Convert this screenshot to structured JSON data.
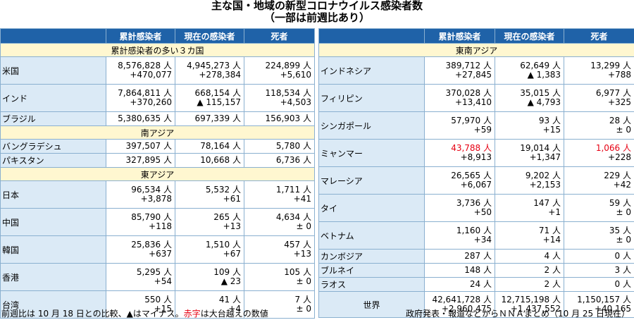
{
  "title": {
    "line1": "主な国・地域の新型コロナウイルス感染者数",
    "line2": "（一部は前週比あり）"
  },
  "headers": [
    "",
    "累計感染者",
    "現在の感染者",
    "死者"
  ],
  "left": [
    {
      "section": "累計感染者の多い３カ国"
    },
    {
      "name": "米国",
      "cum": "8,576,828 人",
      "cum_d": "+470,077",
      "cur": "4,945,273 人",
      "cur_d": "+278,384",
      "dead": "224,899 人",
      "dead_d": "+5,610"
    },
    {
      "name": "インド",
      "cum": "7,864,811 人",
      "cum_d": "+370,260",
      "cur": "668,154 人",
      "cur_d": "▲ 115,157",
      "dead": "118,534 人",
      "dead_d": "+4,503"
    },
    {
      "name": "ブラジル",
      "cum": "5,380,635 人",
      "cum_d": "",
      "cur": "697,339 人",
      "cur_d": "",
      "dead": "156,903 人",
      "dead_d": "",
      "single": true
    },
    {
      "section": "南アジア"
    },
    {
      "name": "バングラデシュ",
      "cum": "397,507 人",
      "cum_d": "",
      "cur": "78,164 人",
      "cur_d": "",
      "dead": "5,780 人",
      "dead_d": "",
      "single": true
    },
    {
      "name": "パキスタン",
      "cum": "327,895 人",
      "cum_d": "",
      "cur": "10,668 人",
      "cur_d": "",
      "dead": "6,736 人",
      "dead_d": "",
      "single": true
    },
    {
      "section": "東アジア"
    },
    {
      "name": "日本",
      "cum": "96,534 人",
      "cum_d": "+3,878",
      "cur": "5,532 人",
      "cur_d": "+61",
      "dead": "1,711 人",
      "dead_d": "+41"
    },
    {
      "name": "中国",
      "cum": "85,790 人",
      "cum_d": "+118",
      "cur": "265 人",
      "cur_d": "+13",
      "dead": "4,634 人",
      "dead_d": "± 0"
    },
    {
      "name": "韓国",
      "cum": "25,836 人",
      "cum_d": "+637",
      "cur": "1,510 人",
      "cur_d": "+67",
      "dead": "457 人",
      "dead_d": "+13"
    },
    {
      "name": "香港",
      "cum": "5,295 人",
      "cum_d": "+54",
      "cur": "109 人",
      "cur_d": "▲ 23",
      "dead": "105 人",
      "dead_d": "± 0"
    },
    {
      "name": "台湾",
      "cum": "550 人",
      "cum_d": "+15",
      "cur": "41 人",
      "cur_d": "+4",
      "dead": "7 人",
      "dead_d": "± 0"
    }
  ],
  "right": [
    {
      "section": "東南アジア"
    },
    {
      "name": "インドネシア",
      "cum": "389,712 人",
      "cum_d": "+27,845",
      "cur": "62,649 人",
      "cur_d": "▲ 1,383",
      "dead": "13,299 人",
      "dead_d": "+788"
    },
    {
      "name": "フィリピン",
      "cum": "370,028 人",
      "cum_d": "+13,410",
      "cur": "35,015 人",
      "cur_d": "▲ 4,793",
      "dead": "6,977 人",
      "dead_d": "+325"
    },
    {
      "name": "シンガポール",
      "cum": "57,970 人",
      "cum_d": "+59",
      "cur": "93 人",
      "cur_d": "+15",
      "dead": "28 人",
      "dead_d": "± 0"
    },
    {
      "name": "ミャンマー",
      "cum": "43,788 人",
      "cum_d": "+8,913",
      "cur": "19,014 人",
      "cur_d": "+1,347",
      "dead": "1,066 人",
      "dead_d": "+228",
      "cum_red": true,
      "dead_red": true
    },
    {
      "name": "マレーシア",
      "cum": "26,565 人",
      "cum_d": "+6,067",
      "cur": "9,202 人",
      "cur_d": "+2,153",
      "dead": "229 人",
      "dead_d": "+42"
    },
    {
      "name": "タイ",
      "cum": "3,736 人",
      "cum_d": "+50",
      "cur": "147 人",
      "cur_d": "+1",
      "dead": "59 人",
      "dead_d": "± 0"
    },
    {
      "name": "ベトナム",
      "cum": "1,160 人",
      "cum_d": "+34",
      "cur": "71 人",
      "cur_d": "+14",
      "dead": "35 人",
      "dead_d": "± 0"
    },
    {
      "name": "カンボジア",
      "cum": "287 人",
      "cum_d": "",
      "cur": "4 人",
      "cur_d": "",
      "dead": "0 人",
      "dead_d": "",
      "single": true
    },
    {
      "name": "ブルネイ",
      "cum": "148 人",
      "cum_d": "",
      "cur": "2 人",
      "cur_d": "",
      "dead": "3 人",
      "dead_d": "",
      "single": true
    },
    {
      "name": "ラオス",
      "cum": "24 人",
      "cum_d": "",
      "cur": "2 人",
      "cur_d": "",
      "dead": "0 人",
      "dead_d": "",
      "single": true
    },
    {
      "name": "世界",
      "cum": "42,641,728 人",
      "cum_d": "+2,960,475",
      "cur": "12,715,198 人",
      "cur_d": "+1,437,552",
      "dead": "1,150,157 人",
      "dead_d": "+40,165",
      "world": true
    }
  ],
  "footer": {
    "left_pre": "前週比は 10 月 18 日との比較、▲はマイナス。",
    "left_red": "赤字",
    "left_post": "は大台越えの数値",
    "right": "政府発表・報道などからＮＮＡまとめ（10 月 25 日現在）"
  },
  "colors": {
    "header": "#1f62a8",
    "name_cell": "#dbeaf6",
    "section": "#fff7d0",
    "red": "#e60012"
  }
}
